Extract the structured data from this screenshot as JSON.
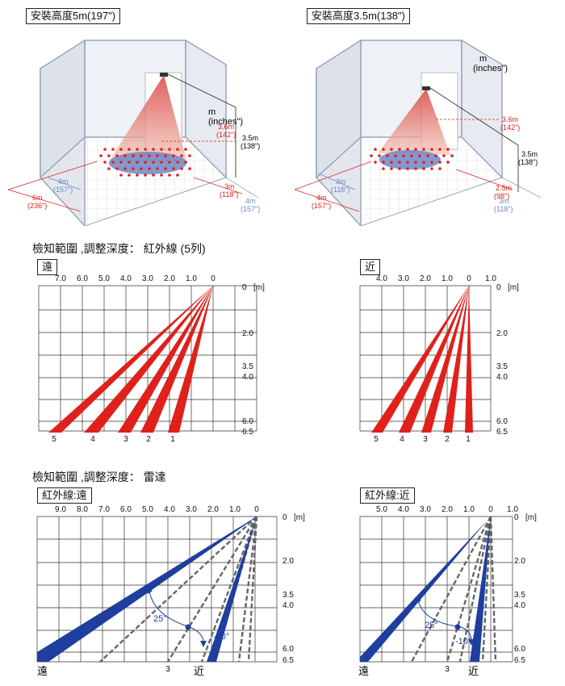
{
  "install": {
    "left": {
      "title": "安裝高度5m(197\")",
      "unit_m": "m",
      "unit_in": "(inches\")",
      "label_36_m": "3.6m",
      "label_36_in": "(142\")",
      "label_35_m": "3.5m",
      "label_35_in": "(138\")",
      "label_3_m": "3m",
      "label_3_in": "(118\")",
      "label_4a_m": "4m",
      "label_4a_in": "(157\")",
      "label_6_m": "6m",
      "label_6_in": "(236\")",
      "label_4b_m": "4m",
      "label_4b_in": "(157\")"
    },
    "right": {
      "title": "安裝高度3.5m(138\")",
      "unit_m": "m",
      "unit_in": "(inches\")",
      "label_36_m": "3.6m",
      "label_36_in": "(142\")",
      "label_35_m": "3.5m",
      "label_35_in": "(138\")",
      "label_25_m": "2.5m",
      "label_25_in": "(98\")",
      "label_3a_m": "3m",
      "label_3a_in": "(118\")",
      "label_4_m": "4m",
      "label_4_in": "(157\")",
      "label_3b_m": "3m",
      "label_3b_in": "(118\")"
    }
  },
  "ir_section": {
    "title": "檢知範圍 ,調整深度： 紅外線 (5列)",
    "far_label": "遠",
    "near_label": "近",
    "far_top_ticks": [
      "7.0",
      "6.0",
      "5.0",
      "4.0",
      "3.0",
      "2.0",
      "1.0",
      "0"
    ],
    "near_top_ticks": [
      "4.0",
      "3.0",
      "2.0",
      "1.0",
      "0",
      "1.0"
    ],
    "right_ticks": [
      "0",
      "2.0",
      "3.5",
      "4.0",
      "6.0",
      "6.5"
    ],
    "unit": "[m]",
    "beam_labels": [
      "5",
      "4",
      "3",
      "2",
      "1"
    ]
  },
  "radar_section": {
    "title": "檢知範圍 ,調整深度： 雷達",
    "far_label": "紅外線:遠",
    "near_label": "紅外線:近",
    "far_top_ticks": [
      "9.0",
      "8.0",
      "7.0",
      "6.0",
      "5.0",
      "4.0",
      "3.0",
      "2.0",
      "1.0",
      "0"
    ],
    "near_top_ticks": [
      "5.0",
      "4.0",
      "3.0",
      "2.0",
      "1.0",
      "0",
      "1.0"
    ],
    "right_ticks": [
      "0",
      "2.0",
      "3.5",
      "4.0",
      "6.0",
      "6.5"
    ],
    "unit": "[m]",
    "angle_25": "25°",
    "angle_10": "-10°",
    "far_word": "遠",
    "near_word": "近",
    "mid_label": "3"
  }
}
